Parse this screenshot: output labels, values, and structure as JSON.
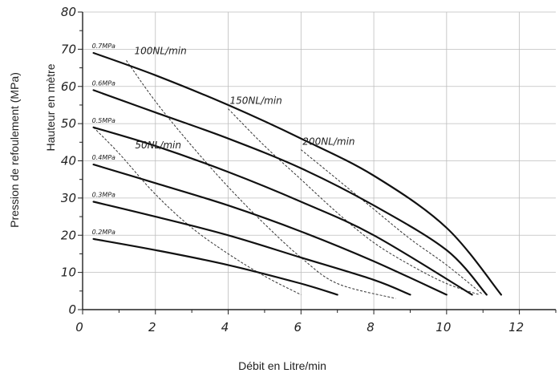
{
  "chart_data": {
    "type": "line",
    "xlabel": "Débit en Litre/min",
    "ylabel_outer": "Pression de refoulement (MPa)",
    "ylabel_inner": "Hauteur en mètre",
    "xlim": [
      0,
      13
    ],
    "ylim": [
      0,
      80
    ],
    "x_ticks": [
      "0",
      "2",
      "4",
      "6",
      "8",
      "10",
      "12"
    ],
    "x_tick_values": [
      0,
      2,
      4,
      6,
      8,
      10,
      12
    ],
    "y_ticks": [
      "0",
      "10",
      "20",
      "30",
      "40",
      "50",
      "60",
      "70",
      "80"
    ],
    "y_tick_values": [
      0,
      10,
      20,
      30,
      40,
      50,
      60,
      70,
      80
    ],
    "grid": true,
    "pressure_series": [
      {
        "name": "0.7MPa",
        "points": [
          [
            0.3,
            69
          ],
          [
            2,
            63
          ],
          [
            4,
            55
          ],
          [
            6,
            46
          ],
          [
            8,
            36
          ],
          [
            10,
            22
          ],
          [
            11.5,
            4
          ]
        ]
      },
      {
        "name": "0.6MPa",
        "points": [
          [
            0.3,
            59
          ],
          [
            2,
            53
          ],
          [
            4,
            46
          ],
          [
            6,
            38
          ],
          [
            8,
            28
          ],
          [
            10,
            16
          ],
          [
            11.1,
            4
          ]
        ]
      },
      {
        "name": "0.5MPa",
        "points": [
          [
            0.3,
            49
          ],
          [
            2,
            44
          ],
          [
            4,
            37
          ],
          [
            6,
            29
          ],
          [
            8,
            20
          ],
          [
            10.7,
            4
          ]
        ]
      },
      {
        "name": "0.4MPa",
        "points": [
          [
            0.3,
            39
          ],
          [
            2,
            34
          ],
          [
            4,
            28
          ],
          [
            6,
            21
          ],
          [
            8,
            13
          ],
          [
            10,
            4
          ]
        ]
      },
      {
        "name": "0.3MPa",
        "points": [
          [
            0.3,
            29
          ],
          [
            2,
            25
          ],
          [
            4,
            20
          ],
          [
            6,
            14
          ],
          [
            8,
            8
          ],
          [
            9,
            4
          ]
        ]
      },
      {
        "name": "0.2MPa",
        "points": [
          [
            0.3,
            19
          ],
          [
            2,
            16
          ],
          [
            4,
            12
          ],
          [
            6,
            7
          ],
          [
            7,
            4
          ]
        ]
      }
    ],
    "air_series": [
      {
        "name": "50NL/min",
        "points": [
          [
            0.3,
            49
          ],
          [
            1,
            42
          ],
          [
            2,
            31
          ],
          [
            3,
            22
          ],
          [
            4,
            15
          ],
          [
            5,
            9
          ],
          [
            6,
            4
          ]
        ]
      },
      {
        "name": "100NL/min",
        "points": [
          [
            1.2,
            67
          ],
          [
            2,
            56
          ],
          [
            3,
            44
          ],
          [
            4,
            33
          ],
          [
            5,
            23
          ],
          [
            6,
            14
          ],
          [
            7,
            7
          ],
          [
            8.6,
            3
          ]
        ]
      },
      {
        "name": "150NL/min",
        "points": [
          [
            4,
            54
          ],
          [
            5,
            44
          ],
          [
            6,
            35
          ],
          [
            7,
            26
          ],
          [
            8,
            18
          ],
          [
            9,
            12
          ],
          [
            10,
            7
          ],
          [
            10.9,
            4
          ]
        ]
      },
      {
        "name": "200NL/min",
        "points": [
          [
            6,
            43
          ],
          [
            7,
            35
          ],
          [
            8,
            27
          ],
          [
            9,
            19
          ],
          [
            10,
            12
          ],
          [
            11,
            4
          ]
        ]
      }
    ]
  }
}
